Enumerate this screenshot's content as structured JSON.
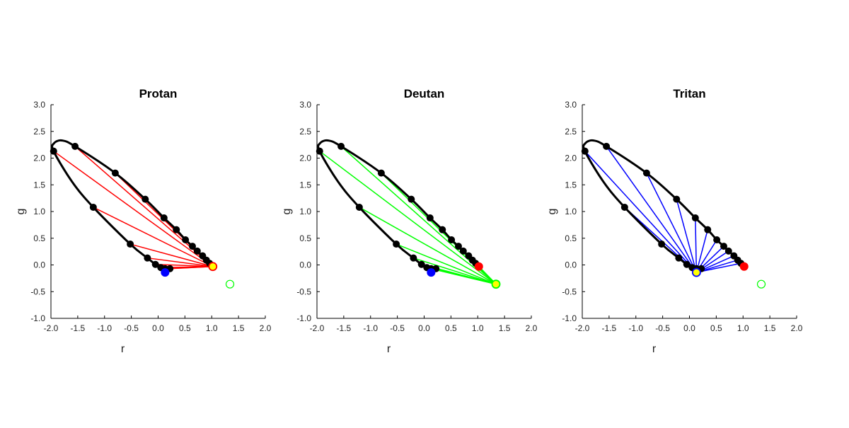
{
  "chart_data": {
    "type": "scatter",
    "xlim": [
      -2.0,
      2.0
    ],
    "ylim": [
      -1.0,
      3.0
    ],
    "xticks": [
      "-2.0",
      "-1.5",
      "-1.0",
      "-0.5",
      "0.0",
      "0.5",
      "1.0",
      "1.5",
      "2.0"
    ],
    "yticks": [
      "-1.0",
      "-0.5",
      "0.0",
      "0.5",
      "1.0",
      "1.5",
      "2.0",
      "2.5",
      "3.0"
    ],
    "xlabel": "r",
    "ylabel": "g",
    "grid": false,
    "locus_points": [
      [
        0.96,
        0.03
      ],
      [
        0.9,
        0.09
      ],
      [
        0.83,
        0.17
      ],
      [
        0.73,
        0.26
      ],
      [
        0.64,
        0.35
      ],
      [
        0.51,
        0.47
      ],
      [
        0.34,
        0.66
      ],
      [
        0.11,
        0.88
      ],
      [
        -0.24,
        1.23
      ],
      [
        -0.8,
        1.72
      ],
      [
        -1.55,
        2.22
      ],
      [
        -1.95,
        2.13
      ],
      [
        -1.21,
        1.08
      ],
      [
        -0.52,
        0.39
      ],
      [
        -0.2,
        0.13
      ],
      [
        -0.05,
        0.01
      ],
      [
        0.05,
        -0.05
      ],
      [
        0.13,
        -0.07
      ],
      [
        0.22,
        -0.07
      ]
    ],
    "locus_curve": [
      [
        0.96,
        0.03
      ],
      [
        0.9,
        0.09
      ],
      [
        0.83,
        0.17
      ],
      [
        0.73,
        0.26
      ],
      [
        0.64,
        0.35
      ],
      [
        0.51,
        0.47
      ],
      [
        0.34,
        0.66
      ],
      [
        0.11,
        0.88
      ],
      [
        -0.24,
        1.23
      ],
      [
        -0.8,
        1.72
      ],
      [
        -1.55,
        2.22
      ],
      [
        -1.79,
        2.33
      ],
      [
        -1.94,
        2.28
      ],
      [
        -1.95,
        2.13
      ],
      [
        -1.6,
        1.55
      ],
      [
        -1.21,
        1.08
      ],
      [
        -0.52,
        0.39
      ],
      [
        -0.2,
        0.13
      ],
      [
        -0.05,
        0.01
      ],
      [
        0.05,
        -0.05
      ],
      [
        0.13,
        -0.07
      ],
      [
        0.22,
        -0.07
      ]
    ],
    "primaries": {
      "red": [
        1.02,
        -0.03
      ],
      "green": [
        1.34,
        -0.36
      ],
      "blue": [
        0.13,
        -0.14
      ]
    },
    "colors": {
      "red": "#ff0000",
      "green": "#00ff00",
      "blue": "#0000ff",
      "copunctal_fill": "#ffff00",
      "locus": "#000000"
    },
    "panels": [
      {
        "title": "Protan",
        "copunctal": "red",
        "line_color": "#ff0000"
      },
      {
        "title": "Deutan",
        "copunctal": "green",
        "line_color": "#00ff00"
      },
      {
        "title": "Tritan",
        "copunctal": "blue",
        "line_color": "#0000ff"
      }
    ]
  }
}
